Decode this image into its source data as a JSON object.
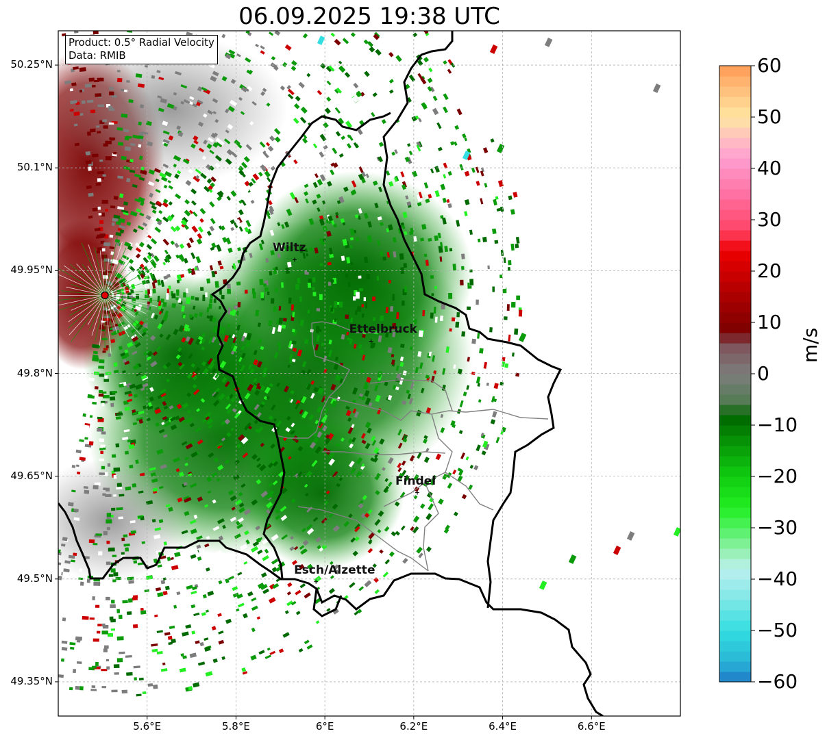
{
  "title": "06.09.2025 19:38 UTC",
  "info_box": {
    "product": "Product: 0.5° Radial Velocity",
    "source": "Data: RMIB"
  },
  "map_extent": {
    "lon": [
      5.4,
      6.8
    ],
    "lat": [
      49.3,
      50.3
    ]
  },
  "lat_ticks": [
    {
      "value": 50.25,
      "label": "50.25°N"
    },
    {
      "value": 50.1,
      "label": "50.1°N"
    },
    {
      "value": 49.95,
      "label": "49.95°N"
    },
    {
      "value": 49.8,
      "label": "49.8°N"
    },
    {
      "value": 49.65,
      "label": "49.65°N"
    },
    {
      "value": 49.5,
      "label": "49.5°N"
    },
    {
      "value": 49.35,
      "label": "49.35°N"
    }
  ],
  "lon_ticks": [
    {
      "value": 5.6,
      "label": "5.6°E"
    },
    {
      "value": 5.8,
      "label": "5.8°E"
    },
    {
      "value": 6.0,
      "label": "6°E"
    },
    {
      "value": 6.2,
      "label": "6.2°E"
    },
    {
      "value": 6.4,
      "label": "6.4°E"
    },
    {
      "value": 6.6,
      "label": "6.6°E"
    }
  ],
  "radar_site": {
    "lon": 5.505,
    "lat": 49.914
  },
  "cities": [
    {
      "name": "Wiltz",
      "lon": 5.932,
      "lat": 49.966
    },
    {
      "name": "Ettelbruck",
      "lon": 6.104,
      "lat": 49.847
    },
    {
      "name": "Findel",
      "lon": 6.208,
      "lat": 49.626
    },
    {
      "name": "Esch/Alzette",
      "lon": 5.98,
      "lat": 49.496
    }
  ],
  "colorbar": {
    "label": "m/s",
    "min": -60,
    "max": 60,
    "ticks": [
      {
        "value": 60,
        "label": "60"
      },
      {
        "value": 50,
        "label": "50"
      },
      {
        "value": 40,
        "label": "40"
      },
      {
        "value": 30,
        "label": "30"
      },
      {
        "value": 20,
        "label": "20"
      },
      {
        "value": 10,
        "label": "10"
      },
      {
        "value": 0,
        "label": "0"
      },
      {
        "value": -10,
        "label": "−10"
      },
      {
        "value": -20,
        "label": "−20"
      },
      {
        "value": -30,
        "label": "−30"
      },
      {
        "value": -40,
        "label": "−40"
      },
      {
        "value": -50,
        "label": "−50"
      },
      {
        "value": -60,
        "label": "−60"
      }
    ],
    "stops": [
      {
        "value": -60,
        "color": "#1f78c8"
      },
      {
        "value": -56,
        "color": "#29b6d6"
      },
      {
        "value": -50,
        "color": "#33dde0"
      },
      {
        "value": -44,
        "color": "#7fe6e6"
      },
      {
        "value": -38,
        "color": "#bdf0f0"
      },
      {
        "value": -34,
        "color": "#8ff0a6"
      },
      {
        "value": -30,
        "color": "#4ff260"
      },
      {
        "value": -26,
        "color": "#22ee22"
      },
      {
        "value": -20,
        "color": "#10cc10"
      },
      {
        "value": -14,
        "color": "#079a07"
      },
      {
        "value": -8,
        "color": "#006400"
      },
      {
        "value": -6,
        "color": "#4f7a4f"
      },
      {
        "value": 0,
        "color": "#7d7d7d"
      },
      {
        "value": 6,
        "color": "#7e5058"
      },
      {
        "value": 8,
        "color": "#7a0000"
      },
      {
        "value": 16,
        "color": "#b10000"
      },
      {
        "value": 24,
        "color": "#ee0000"
      },
      {
        "value": 28,
        "color": "#ff4466"
      },
      {
        "value": 36,
        "color": "#ff77aa"
      },
      {
        "value": 42,
        "color": "#ff9ed0"
      },
      {
        "value": 46,
        "color": "#ffc0c0"
      },
      {
        "value": 50,
        "color": "#ffe6a0"
      },
      {
        "value": 56,
        "color": "#ffbb77"
      },
      {
        "value": 60,
        "color": "#ff9a55"
      }
    ]
  },
  "colors": {
    "border": "#000000",
    "canton_border": "#808080",
    "grid": "#b0b0b0",
    "radar_marker": "#e00000",
    "echo_green_dark": "#006a00",
    "echo_green": "#0a9a0a",
    "echo_green_light": "#22ee22",
    "echo_gray": "#7d7d7d",
    "echo_darkred": "#7a0000",
    "echo_red": "#cc0000"
  }
}
